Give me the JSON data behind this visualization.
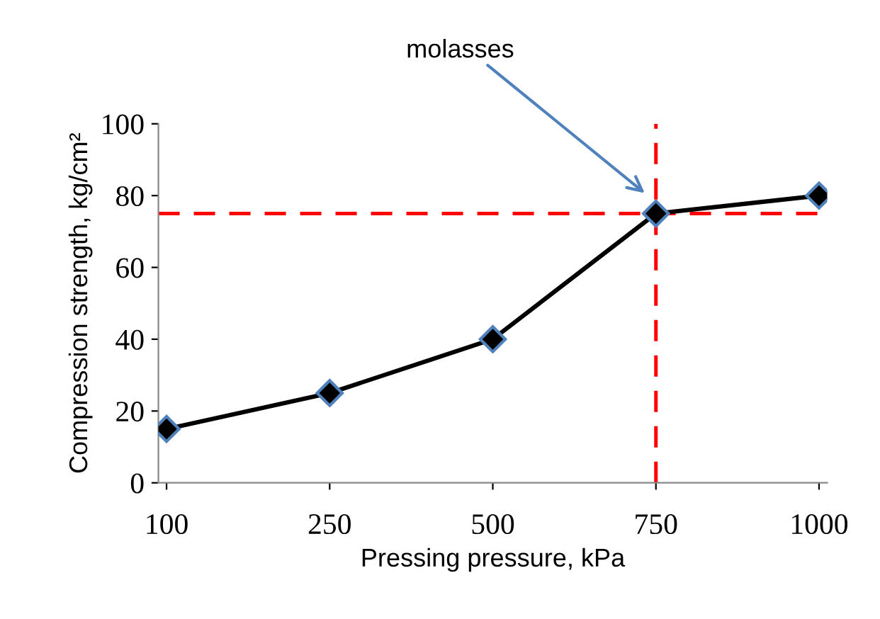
{
  "chart_data": {
    "type": "line",
    "xlabel": "Pressing pressure, kPa",
    "ylabel": "Compression strength, kg/cm²",
    "categories": [
      "100",
      "250",
      "500",
      "750",
      "1000"
    ],
    "series": [
      {
        "color": "#000000",
        "values": [
          15,
          25,
          40,
          75,
          80
        ]
      }
    ],
    "ylim": [
      0,
      100
    ],
    "yticks": [
      0,
      20,
      40,
      60,
      80,
      100
    ],
    "marker": "diamond",
    "line_style": "solid",
    "grid": false,
    "legend": false,
    "ref_lines": [
      {
        "axis": "y",
        "value": 75,
        "color": "#ff0000",
        "line_style": "dashed"
      },
      {
        "axis": "x",
        "value": "750",
        "color": "#ff0000",
        "line_style": "dashed"
      }
    ],
    "annotations": [
      "molasses"
    ]
  }
}
